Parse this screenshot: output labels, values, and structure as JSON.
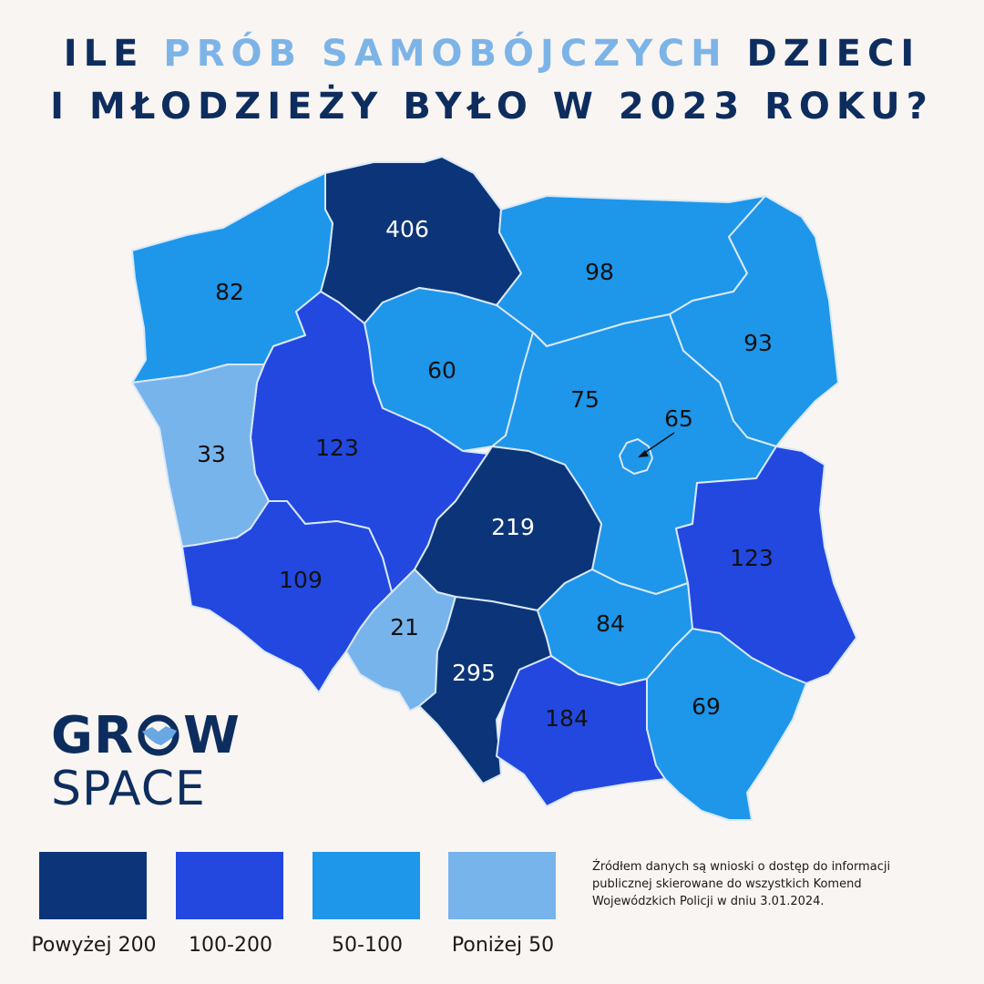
{
  "title": {
    "line1_pre": "ILE ",
    "line1_accent": "PRÓB SAMOBÓJCZYCH",
    "line1_post": " DZIECI",
    "line2": "I MŁODZIEŻY BYŁO W 2023 ROKU?"
  },
  "colors": {
    "above_200": "#0b3578",
    "range_100_200": "#2248e0",
    "range_50_100": "#1e96ea",
    "below_50": "#78b4ec",
    "title_dark": "#0d2d5e",
    "title_accent": "#7db4e8",
    "background": "#f9f5f2"
  },
  "regions": [
    {
      "id": "pomorskie",
      "value": "406",
      "category": "above_200"
    },
    {
      "id": "zachodniopomorskie",
      "value": "82",
      "category": "range_50_100"
    },
    {
      "id": "warminsko-mazurskie",
      "value": "98",
      "category": "range_50_100"
    },
    {
      "id": "podlaskie",
      "value": "93",
      "category": "range_50_100"
    },
    {
      "id": "kujawsko-pomorskie",
      "value": "60",
      "category": "range_50_100"
    },
    {
      "id": "wielkopolskie",
      "value": "123",
      "category": "range_100_200"
    },
    {
      "id": "lubuskie",
      "value": "33",
      "category": "below_50"
    },
    {
      "id": "mazowieckie",
      "value": "75",
      "category": "range_50_100"
    },
    {
      "id": "warszawa",
      "value": "65",
      "category": "range_50_100"
    },
    {
      "id": "lodzkie",
      "value": "219",
      "category": "above_200"
    },
    {
      "id": "lubelskie",
      "value": "123",
      "category": "range_100_200"
    },
    {
      "id": "dolnoslaskie",
      "value": "109",
      "category": "range_100_200"
    },
    {
      "id": "opolskie",
      "value": "21",
      "category": "below_50"
    },
    {
      "id": "slaskie",
      "value": "295",
      "category": "above_200"
    },
    {
      "id": "swietokrzyskie",
      "value": "84",
      "category": "range_50_100"
    },
    {
      "id": "malopolskie",
      "value": "184",
      "category": "range_100_200"
    },
    {
      "id": "podkarpackie",
      "value": "69",
      "category": "range_50_100"
    }
  ],
  "legend": [
    {
      "label": "Powyżej 200",
      "category": "above_200"
    },
    {
      "label": "100-200",
      "category": "range_100_200"
    },
    {
      "label": "50-100",
      "category": "range_50_100"
    },
    {
      "label": "Poniżej 50",
      "category": "below_50"
    }
  ],
  "logo": {
    "grow": "GR",
    "grow_end": "W",
    "space": "SPACE",
    "icon": "handshake-icon"
  },
  "source_text": "Źródłem danych są wnioski o dostęp do informacji publicznej skierowane do wszystkich Komend Wojewódzkich Policji w dniu 3.01.2024."
}
